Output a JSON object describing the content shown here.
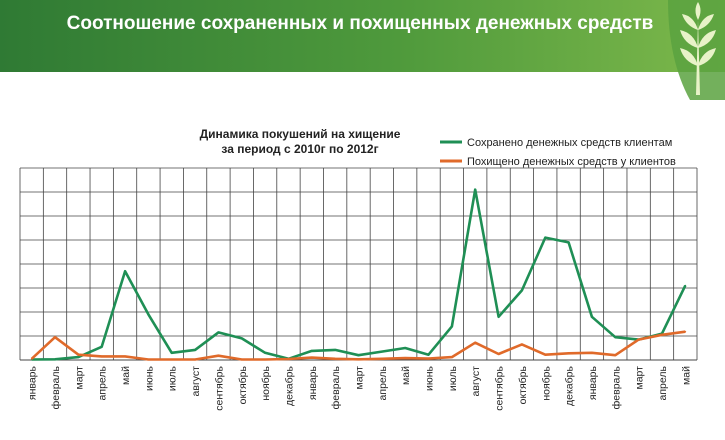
{
  "page": {
    "title": "Соотношение сохраненных и похищенных денежных средств"
  },
  "colors": {
    "banner": "#3f8a38",
    "saved": "#1f8f55",
    "stolen": "#e06a2a",
    "grid": "#444444"
  },
  "chart_data": {
    "type": "line",
    "title": "Динамика покушений на хищение за период с 2010г по 2012г",
    "title_lines": [
      "Динамика покушений на хищение",
      "за период с 2010г по 2012г"
    ],
    "xlabel": "",
    "ylabel": "",
    "ylim": [
      0,
      8
    ],
    "grid": true,
    "legend_position": "top-right",
    "categories": [
      "январь",
      "февраль",
      "март",
      "апрель",
      "май",
      "июнь",
      "июль",
      "август",
      "сентябрь",
      "октябрь",
      "ноябрь",
      "декабрь",
      "январь",
      "февраль",
      "март",
      "апрель",
      "май",
      "июнь",
      "июль",
      "август",
      "сентябрь",
      "октябрь",
      "ноябрь",
      "декабрь",
      "январь",
      "февраль",
      "март",
      "апрель",
      "май"
    ],
    "series": [
      {
        "name": "Сохранено денежных средств клиентам",
        "color": "#1f8f55",
        "values": [
          0.02,
          0.03,
          0.12,
          0.55,
          3.7,
          1.9,
          0.3,
          0.42,
          1.15,
          0.9,
          0.3,
          0.05,
          0.38,
          0.42,
          0.2,
          0.35,
          0.5,
          0.22,
          1.4,
          7.1,
          1.8,
          2.9,
          5.1,
          4.9,
          1.8,
          0.95,
          0.85,
          1.1,
          3.1
        ]
      },
      {
        "name": "Похищено денежных средств у клиентов",
        "color": "#e06a2a",
        "values": [
          0.05,
          0.95,
          0.22,
          0.15,
          0.15,
          0.02,
          0.02,
          0.02,
          0.18,
          0.02,
          0.02,
          0.04,
          0.1,
          0.05,
          0.03,
          0.05,
          0.08,
          0.06,
          0.12,
          0.72,
          0.25,
          0.65,
          0.22,
          0.28,
          0.3,
          0.2,
          0.85,
          1.05,
          1.18
        ]
      }
    ]
  }
}
